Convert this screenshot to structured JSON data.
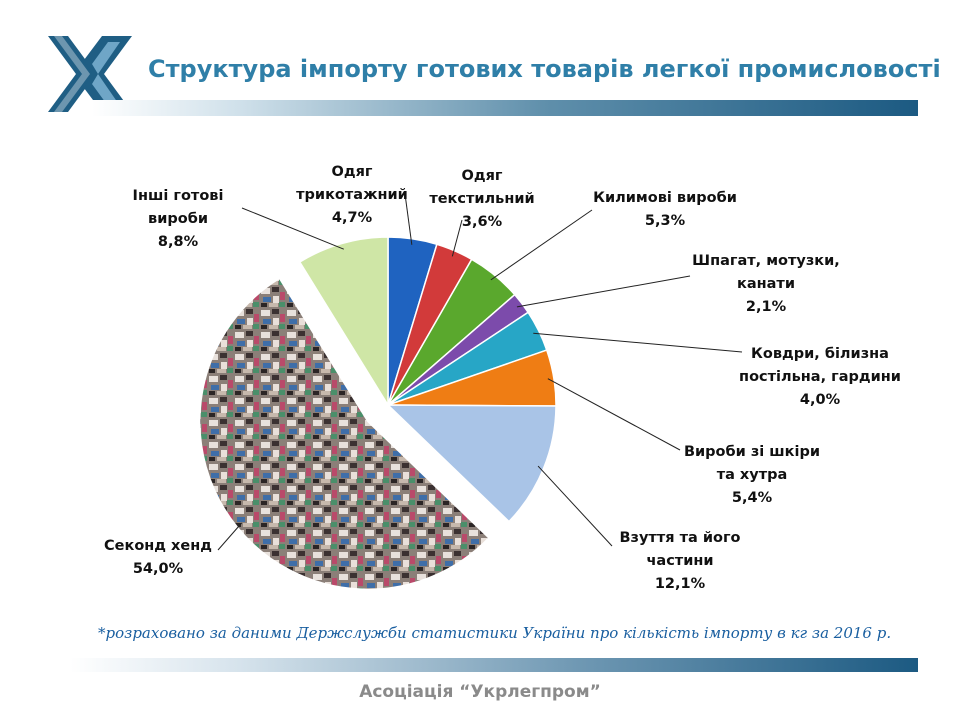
{
  "header": {
    "title": "Структура імпорту готових товарів легкої промисловості"
  },
  "chart_data": {
    "type": "pie",
    "title": "",
    "slices": [
      {
        "label_lines": [
          "Одяг",
          "трикотажний"
        ],
        "value_label": "4,7%",
        "value": 4.7,
        "color": "#1f63c0"
      },
      {
        "label_lines": [
          "Одяг",
          "текстильний"
        ],
        "value_label": "3,6%",
        "value": 3.6,
        "color": "#d23a3a"
      },
      {
        "label_lines": [
          "Килимові вироби"
        ],
        "value_label": "5,3%",
        "value": 5.3,
        "color": "#5aa82d"
      },
      {
        "label_lines": [
          "Шпагат, мотузки,",
          "канати"
        ],
        "value_label": "2,1%",
        "value": 2.1,
        "color": "#7c4bab"
      },
      {
        "label_lines": [
          "Ковдри, білизна",
          "постільна, гардини"
        ],
        "value_label": "4,0%",
        "value": 4.0,
        "color": "#27a6c6"
      },
      {
        "label_lines": [
          "Вироби зі шкіри",
          "та хутра"
        ],
        "value_label": "5,4%",
        "value": 5.4,
        "color": "#ef7d14"
      },
      {
        "label_lines": [
          "Взуття та його",
          "частини"
        ],
        "value_label": "12,1%",
        "value": 12.1,
        "color": "#a9c4e7"
      },
      {
        "label_lines": [
          "Секонд хенд"
        ],
        "value_label": "54,0%",
        "value": 54.0,
        "color": "#8b7f78"
      },
      {
        "label_lines": [
          "Інші готові",
          "вироби"
        ],
        "value_label": "8,8%",
        "value": 8.8,
        "color": "#cfe6a6"
      }
    ],
    "legend": "none"
  },
  "footnote": "*розраховано за даними Держслужби статистики України про кількість імпорту в кг за 2016 р.",
  "footer": {
    "association": "Асоціація “Укрлегпром”"
  }
}
